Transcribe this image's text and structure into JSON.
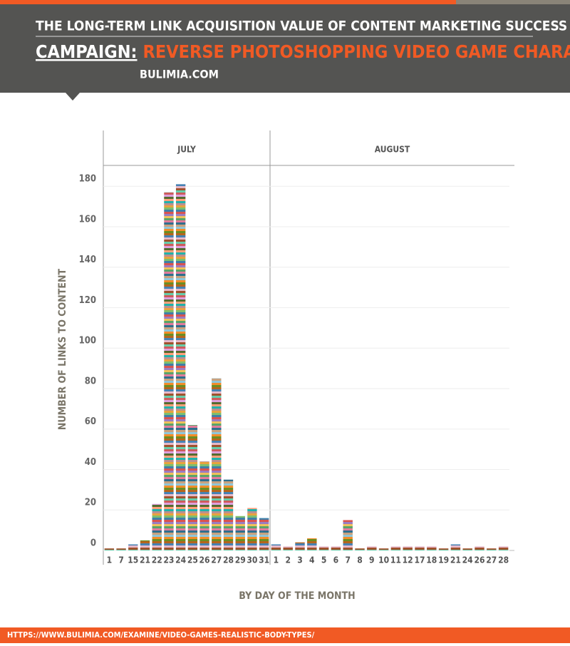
{
  "chart_data": {
    "type": "bar",
    "title": "THE LONG-TERM LINK ACQUISITION VALUE OF CONTENT MARKETING SUCCESS",
    "subtitle_label": "CAMPAIGN:",
    "subtitle": "REVERSE PHOTOSHOPPING VIDEO GAME CHARACTERS",
    "site": "BULIMIA.COM",
    "y_label": "NUMBER OF LINKS TO CONTENT",
    "x_label": "BY DAY OF THE MONTH",
    "source": "HTTPS://WWW.BULIMIA.COM/EXAMINE/VIDEO-GAMES-REALISTIC-BODY-TYPES/",
    "ylim": [
      0,
      185
    ],
    "yticks": [
      0,
      20,
      40,
      60,
      80,
      100,
      120,
      140,
      160,
      180
    ],
    "grid": true,
    "panels": [
      {
        "name": "JULY",
        "categories": [
          "1",
          "7",
          "15",
          "21",
          "22",
          "23",
          "24",
          "25",
          "26",
          "27",
          "28",
          "29",
          "30",
          "31"
        ],
        "values": [
          1,
          1,
          3,
          5,
          23,
          177,
          181,
          62,
          44,
          85,
          35,
          17,
          21,
          16
        ]
      },
      {
        "name": "AUGUST",
        "categories": [
          "1",
          "2",
          "3",
          "4",
          "5",
          "6",
          "7",
          "8",
          "9",
          "10",
          "11",
          "12",
          "17",
          "18",
          "19",
          "21",
          "24",
          "26",
          "27",
          "28"
        ],
        "values": [
          3,
          2,
          4,
          6,
          2,
          2,
          15,
          1,
          2,
          1,
          2,
          2,
          2,
          2,
          1,
          3,
          1,
          2,
          1,
          2
        ]
      }
    ]
  }
}
